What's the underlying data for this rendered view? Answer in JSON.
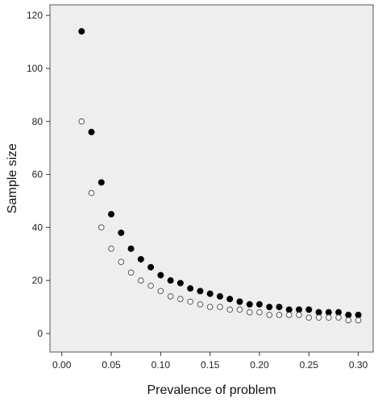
{
  "chart_data": {
    "type": "scatter",
    "xlabel": "Prevalence of problem",
    "ylabel": "Sample size",
    "xlim": [
      -0.012,
      0.315
    ],
    "ylim": [
      -7,
      124
    ],
    "x_ticks": [
      {
        "value": 0.0,
        "label": "0.00"
      },
      {
        "value": 0.05,
        "label": "0.05"
      },
      {
        "value": 0.1,
        "label": "0.10"
      },
      {
        "value": 0.15,
        "label": "0.15"
      },
      {
        "value": 0.2,
        "label": "0.20"
      },
      {
        "value": 0.25,
        "label": "0.25"
      },
      {
        "value": 0.3,
        "label": "0.30"
      }
    ],
    "y_ticks": [
      {
        "value": 0,
        "label": "0"
      },
      {
        "value": 20,
        "label": "20"
      },
      {
        "value": 40,
        "label": "40"
      },
      {
        "value": 60,
        "label": "60"
      },
      {
        "value": 80,
        "label": "80"
      },
      {
        "value": 100,
        "label": "100"
      },
      {
        "value": 120,
        "label": "120"
      }
    ],
    "grid": false,
    "background": "#eeeeee",
    "series": [
      {
        "marker": "filled",
        "color": "#000000",
        "x": [
          0.02,
          0.03,
          0.04,
          0.05,
          0.06,
          0.07,
          0.08,
          0.09,
          0.1,
          0.11,
          0.12,
          0.13,
          0.14,
          0.15,
          0.16,
          0.17,
          0.18,
          0.19,
          0.2,
          0.21,
          0.22,
          0.23,
          0.24,
          0.25,
          0.26,
          0.27,
          0.28,
          0.29,
          0.3
        ],
        "y": [
          114,
          76,
          57,
          45,
          38,
          32,
          28,
          25,
          22,
          20,
          19,
          17,
          16,
          15,
          14,
          13,
          12,
          11,
          11,
          10,
          10,
          9,
          9,
          9,
          8,
          8,
          8,
          7,
          7
        ]
      },
      {
        "marker": "hollow",
        "color": "#555555",
        "x": [
          0.02,
          0.03,
          0.04,
          0.05,
          0.06,
          0.07,
          0.08,
          0.09,
          0.1,
          0.11,
          0.12,
          0.13,
          0.14,
          0.15,
          0.16,
          0.17,
          0.18,
          0.19,
          0.2,
          0.21,
          0.22,
          0.23,
          0.24,
          0.25,
          0.26,
          0.27,
          0.28,
          0.29,
          0.3
        ],
        "y": [
          80,
          53,
          40,
          32,
          27,
          23,
          20,
          18,
          16,
          14,
          13,
          12,
          11,
          10,
          10,
          9,
          9,
          8,
          8,
          7,
          7,
          7,
          7,
          6,
          6,
          6,
          6,
          5,
          5
        ]
      }
    ]
  }
}
